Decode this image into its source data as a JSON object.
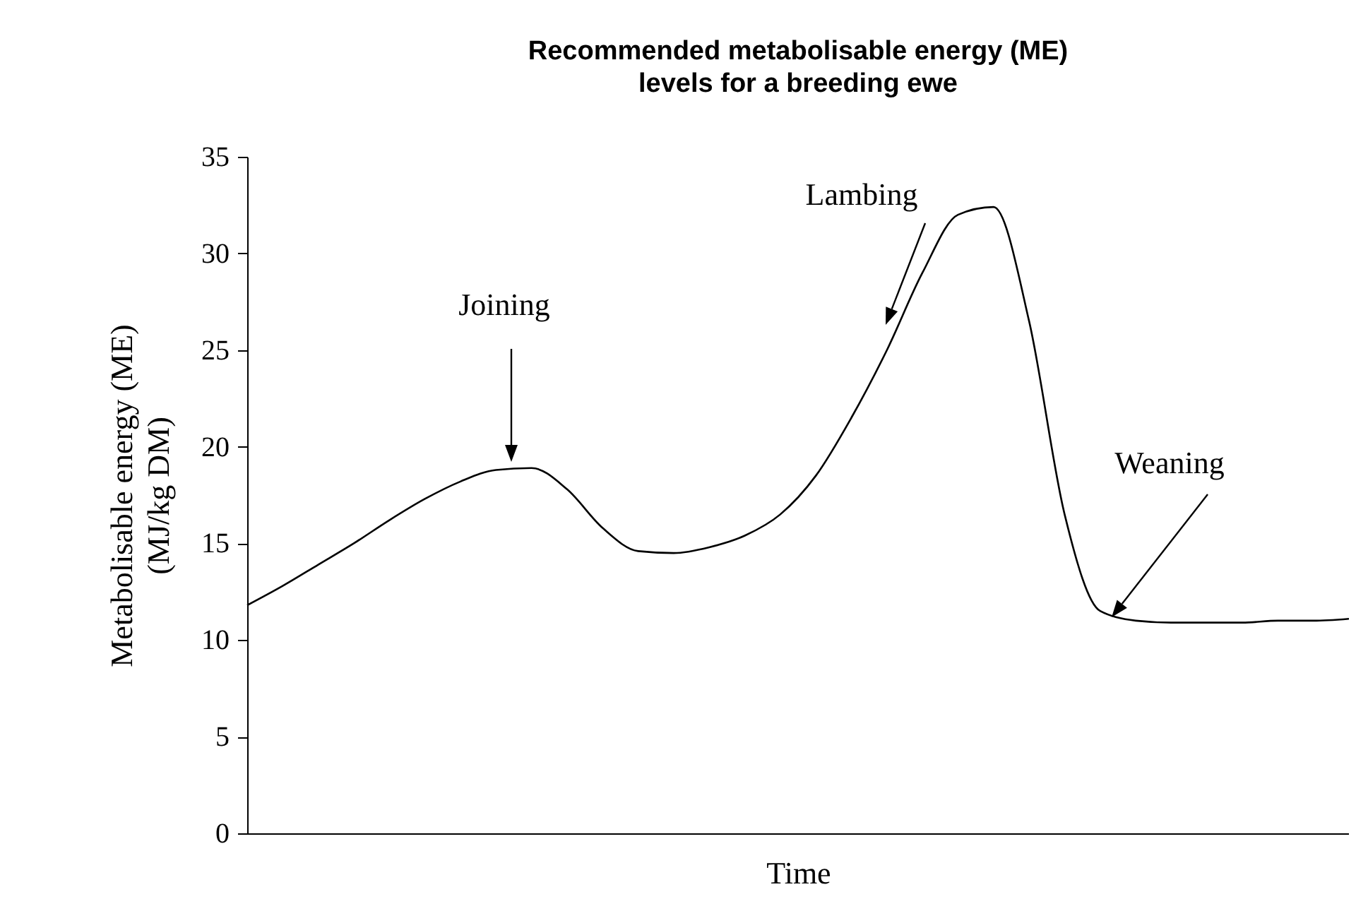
{
  "chart_data": {
    "type": "line",
    "title": "Recommended metabolisable energy (ME)\nlevels for a breeding ewe",
    "xlabel": "Time",
    "ylabel": "Metabolisable energy (ME)\n(MJ/kg DM)",
    "categories": [
      null,
      null,
      null,
      null,
      null,
      null,
      null,
      null,
      null,
      null,
      null,
      null,
      null,
      null,
      null,
      null,
      null,
      null,
      null,
      null,
      null,
      null,
      null,
      null,
      null,
      null,
      null,
      null,
      null,
      null,
      null,
      null
    ],
    "series": [
      {
        "color": "#000000",
        "values": [
          11.8,
          12.8,
          13.9,
          15.0,
          16.2,
          17.3,
          18.2,
          18.8,
          18.9,
          17.8,
          15.8,
          14.6,
          14.5,
          14.8,
          15.4,
          16.5,
          18.5,
          21.5,
          25.0,
          29.0,
          32.0,
          32.4,
          26.5,
          16.5,
          11.5,
          11.0,
          10.9,
          10.9,
          10.9,
          11.0,
          11.0,
          11.1
        ]
      }
    ],
    "ylim": [
      0,
      35
    ],
    "yticks": [
      0,
      5,
      10,
      15,
      20,
      25,
      30,
      35
    ],
    "grid": false,
    "annotations": [
      "Joining",
      "Lambing",
      "Weaning"
    ]
  }
}
